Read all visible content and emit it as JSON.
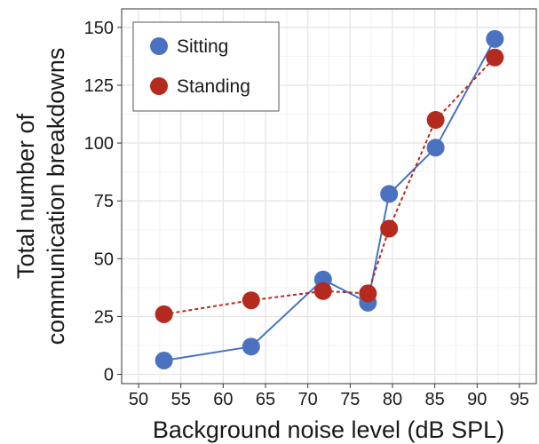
{
  "chart_data": {
    "type": "line",
    "xlabel": "Background noise level (dB SPL)",
    "ylabel_lines": [
      "Total number of",
      "communication breakdowns"
    ],
    "xlim": [
      48,
      97
    ],
    "ylim": [
      -4,
      158
    ],
    "xticks": [
      50,
      55,
      60,
      65,
      70,
      75,
      80,
      85,
      90,
      95
    ],
    "yticks": [
      0,
      25,
      50,
      75,
      100,
      125,
      150
    ],
    "grid": true,
    "legend_position": "top-left",
    "series": [
      {
        "name": "Sitting",
        "color": "#4a72c0",
        "line_style": "solid",
        "points": [
          {
            "x": 53,
            "y": 6
          },
          {
            "x": 63.3,
            "y": 12
          },
          {
            "x": 71.8,
            "y": 41
          },
          {
            "x": 77.1,
            "y": 31
          },
          {
            "x": 79.6,
            "y": 78
          },
          {
            "x": 85.1,
            "y": 98
          },
          {
            "x": 92.1,
            "y": 145
          }
        ]
      },
      {
        "name": "Standing",
        "color": "#b52a1e",
        "line_style": "dashed",
        "points": [
          {
            "x": 53,
            "y": 26
          },
          {
            "x": 63.3,
            "y": 32
          },
          {
            "x": 71.8,
            "y": 36
          },
          {
            "x": 77.1,
            "y": 35
          },
          {
            "x": 79.6,
            "y": 63
          },
          {
            "x": 85.1,
            "y": 110
          },
          {
            "x": 92.1,
            "y": 137
          }
        ]
      }
    ]
  }
}
